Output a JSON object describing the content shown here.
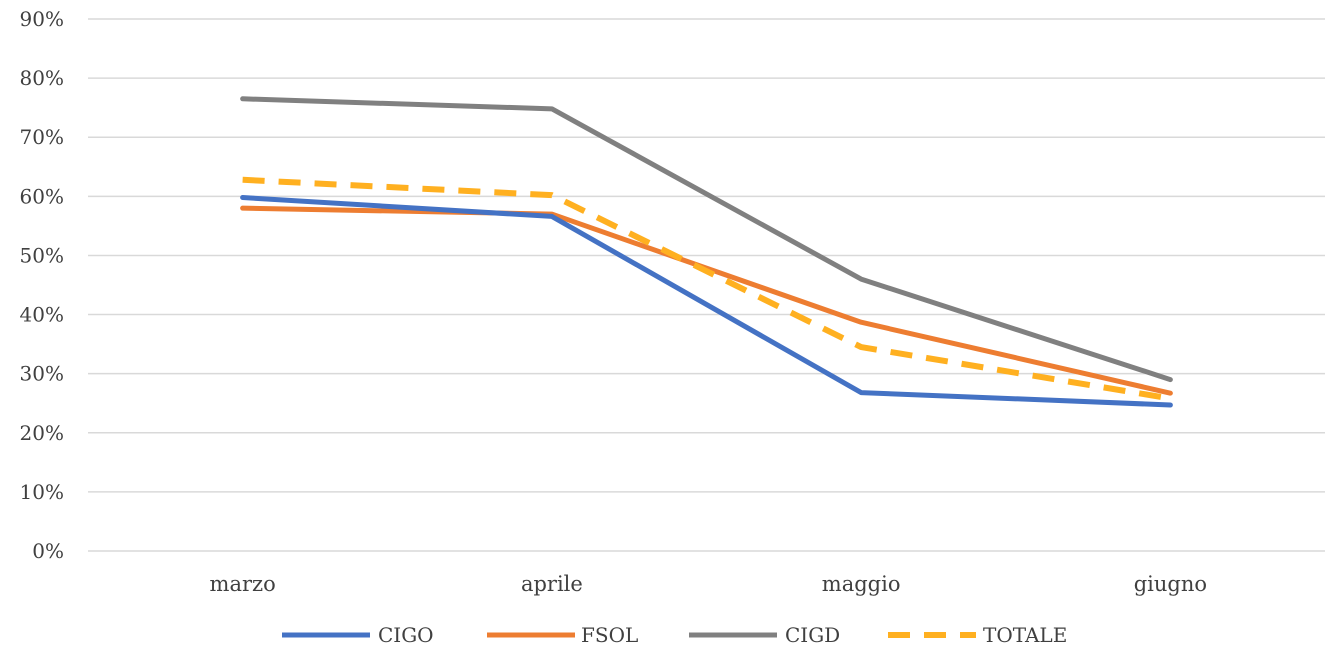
{
  "chart_data": {
    "type": "line",
    "categories": [
      "marzo",
      "aprile",
      "maggio",
      "giugno"
    ],
    "y_ticks": [
      "0%",
      "10%",
      "20%",
      "30%",
      "40%",
      "50%",
      "60%",
      "70%",
      "80%",
      "90%"
    ],
    "ylim": [
      0,
      90
    ],
    "y_unit": "%",
    "grid": true,
    "legend_position": "bottom",
    "series": [
      {
        "name": "CIGO",
        "values": [
          59.8,
          56.6,
          26.8,
          24.7
        ],
        "color": "#4472C4",
        "dash": false
      },
      {
        "name": "FSOL",
        "values": [
          58.0,
          57.0,
          38.7,
          26.7
        ],
        "color": "#ED7D31",
        "dash": false
      },
      {
        "name": "CIGD",
        "values": [
          76.5,
          74.8,
          46.0,
          29.0
        ],
        "color": "#808080",
        "dash": false
      },
      {
        "name": "TOTALE",
        "values": [
          62.8,
          60.2,
          34.5,
          25.8
        ],
        "color": "#FFB020",
        "dash": true
      }
    ]
  }
}
